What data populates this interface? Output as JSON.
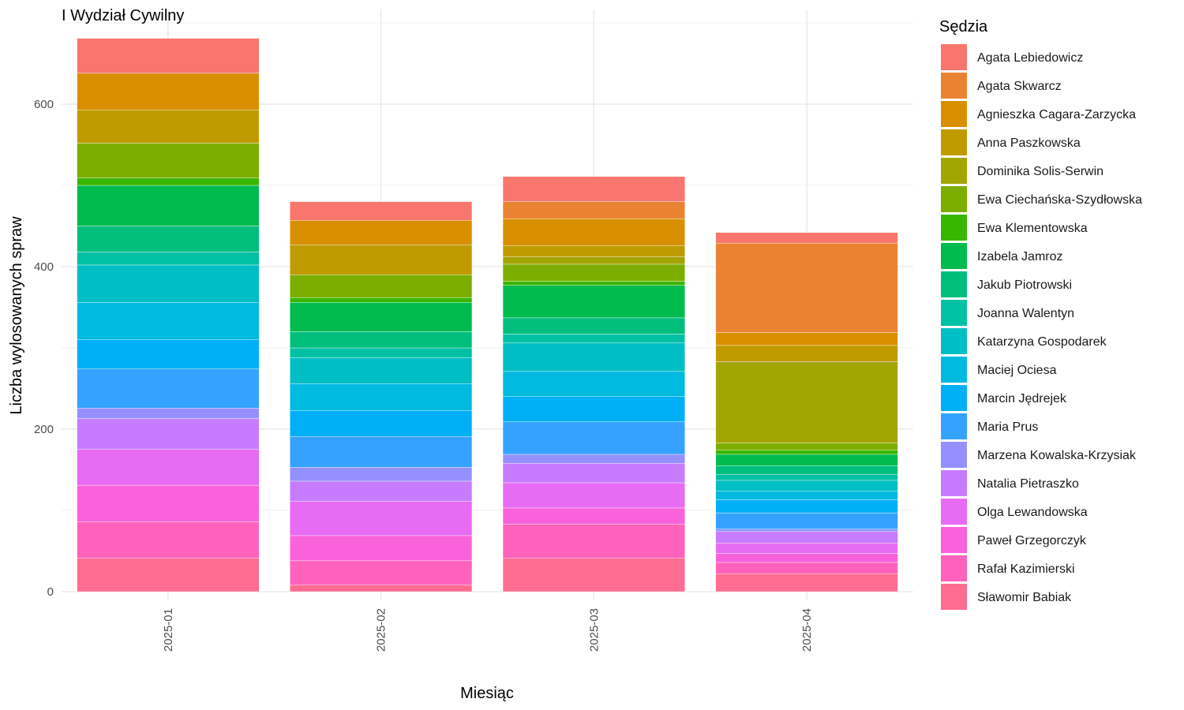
{
  "chart_data": {
    "type": "bar",
    "stacked": true,
    "title": "I Wydział Cywilny",
    "xlabel": "Miesiąc",
    "ylabel": "Liczba wylosowanych spraw",
    "ylim": [
      0,
      700
    ],
    "yticks": [
      0,
      200,
      400,
      600
    ],
    "grid": true,
    "legend_title": "Sędzia",
    "legend_position": "right",
    "categories": [
      "2025-01",
      "2025-02",
      "2025-03",
      "2025-04"
    ],
    "series": [
      {
        "name": "Agata Lebiedowicz",
        "color": "#F8766D",
        "values": [
          43,
          23,
          31,
          13
        ]
      },
      {
        "name": "Agata Skwarcz",
        "color": "#EA8331",
        "values": [
          0,
          0,
          21,
          110
        ]
      },
      {
        "name": "Agnieszka Cagara-Zarzycka",
        "color": "#D89000",
        "values": [
          45,
          30,
          33,
          16
        ]
      },
      {
        "name": "Anna Paszkowska",
        "color": "#C09B00",
        "values": [
          41,
          37,
          14,
          20
        ]
      },
      {
        "name": "Dominika Solis-Serwin",
        "color": "#A3A500",
        "values": [
          0,
          0,
          9,
          100
        ]
      },
      {
        "name": "Ewa Ciechańska-Szydłowska",
        "color": "#7CAE00",
        "values": [
          43,
          28,
          21,
          9
        ]
      },
      {
        "name": "Ewa Klementowska",
        "color": "#39B600",
        "values": [
          9,
          6,
          5,
          5
        ]
      },
      {
        "name": "Izabela Jamroz",
        "color": "#00BB4E",
        "values": [
          50,
          36,
          40,
          14
        ]
      },
      {
        "name": "Jakub Piotrowski",
        "color": "#00BF7D",
        "values": [
          32,
          20,
          20,
          11
        ]
      },
      {
        "name": "Joanna Walentyn",
        "color": "#00C1A3",
        "values": [
          16,
          12,
          11,
          7
        ]
      },
      {
        "name": "Katarzyna Gospodarek",
        "color": "#00BFC4",
        "values": [
          46,
          32,
          35,
          13
        ]
      },
      {
        "name": "Maciej Ociesa",
        "color": "#00BAE0",
        "values": [
          46,
          33,
          31,
          11
        ]
      },
      {
        "name": "Marcin Jędrejek",
        "color": "#00B0F6",
        "values": [
          36,
          32,
          31,
          16
        ]
      },
      {
        "name": "Maria Prus",
        "color": "#35A2FF",
        "values": [
          48,
          38,
          40,
          20
        ]
      },
      {
        "name": "Marzena Kowalska-Krzysiak",
        "color": "#9590FF",
        "values": [
          13,
          17,
          11,
          3
        ]
      },
      {
        "name": "Natalia Pietraszko",
        "color": "#C77CFF",
        "values": [
          38,
          25,
          24,
          14
        ]
      },
      {
        "name": "Olga Lewandowska",
        "color": "#E76BF3",
        "values": [
          44,
          42,
          31,
          13
        ]
      },
      {
        "name": "Paweł Grzegorczyk",
        "color": "#FA62DB",
        "values": [
          45,
          31,
          20,
          11
        ]
      },
      {
        "name": "Rafał Kazimierski",
        "color": "#FF62BC",
        "values": [
          45,
          30,
          42,
          14
        ]
      },
      {
        "name": "Sławomir Babiak",
        "color": "#FF6C91",
        "values": [
          41,
          8,
          41,
          22
        ]
      }
    ]
  }
}
